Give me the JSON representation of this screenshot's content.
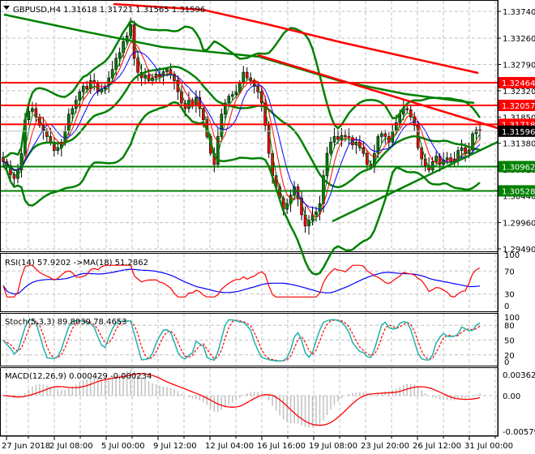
{
  "chart_data": [
    {
      "type": "candlestick",
      "title": "GBPUSD,H4",
      "ohlc_header": {
        "open": "1.31618",
        "high": "1.31721",
        "low": "1.31565",
        "close": "1.31596"
      },
      "ylim": [
        1.2925,
        1.3395
      ],
      "y_ticks": [
        "1.33740",
        "1.33260",
        "1.32790",
        "1.32320",
        "1.31850",
        "1.31380",
        "1.30910",
        "1.30440",
        "1.29960",
        "1.29490"
      ],
      "horizontal_levels": [
        {
          "value": "1.32464",
          "color": "#ff0000"
        },
        {
          "value": "1.32057",
          "color": "#ff0000"
        },
        {
          "value": "1.31718",
          "color": "#ff0000"
        },
        {
          "value": "1.30962",
          "color": "#008000"
        },
        {
          "value": "1.30528",
          "color": "#008000"
        }
      ],
      "current_price": {
        "value": "1.31596",
        "color": "#000000"
      },
      "trendlines": [
        {
          "name": "resistance",
          "color": "#ff0000",
          "from": [
            "16 Jul 08:00",
            1.3298
          ],
          "to": [
            "31 Jul 04:00",
            1.3172
          ]
        },
        {
          "name": "support",
          "color": "#008000",
          "from": [
            "19 Jul 12:00",
            1.2998
          ],
          "to": [
            "31 Jul 04:00",
            1.3138
          ]
        }
      ],
      "overlays": [
        "Bollinger Bands (green)",
        "Moving average (red, long)",
        "Moving average (green, long)",
        "Fast MAs (red, blue, green)"
      ]
    },
    {
      "type": "line",
      "title": "RSI(14) 57.9202 ->MA(18) 51.2862",
      "ylim": [
        0,
        100
      ],
      "y_ticks": [
        "100",
        "70",
        "30",
        "0"
      ],
      "series": [
        {
          "name": "RSI(14)",
          "color": "#ff0000",
          "last": 57.9202
        },
        {
          "name": "MA(18)",
          "color": "#0000ff",
          "last": 51.2862
        }
      ]
    },
    {
      "type": "line",
      "title": "Stoch(5,3,3) 89.8039 78.4653",
      "ylim": [
        0,
        100
      ],
      "y_ticks": [
        "100",
        "80",
        "50",
        "20",
        "0"
      ],
      "series": [
        {
          "name": "%K",
          "color": "#20b2aa",
          "last": 89.8039
        },
        {
          "name": "%D",
          "color": "#ff0000",
          "style": "dashed",
          "last": 78.4653
        }
      ]
    },
    {
      "type": "bar+line",
      "title": "MACD(12,26,9) 0.000429 -0.000234",
      "y_ticks": [
        "0.003626",
        "0.00",
        "-0.005797"
      ],
      "series": [
        {
          "name": "MACD histogram",
          "color": "#c0c0c0",
          "last": 0.000429
        },
        {
          "name": "Signal",
          "color": "#ff0000",
          "last": -0.000234
        }
      ]
    }
  ],
  "x_axis": {
    "labels": [
      "27 Jun 2018",
      "2 Jul 08:00",
      "5 Jul 00:00",
      "9 Jul 12:00",
      "12 Jul 04:00",
      "16 Jul 16:00",
      "19 Jul 08:00",
      "23 Jul 20:00",
      "26 Jul 12:00",
      "31 Jul 00:00"
    ]
  },
  "panes": {
    "main": {
      "title": "GBPUSD,H4 1.31618 1.31721 1.31565 1.31596"
    },
    "rsi": {
      "title": "RSI(14) 57.9202 ->MA(18) 51.2862"
    },
    "stoch": {
      "title": "Stoch(5,3,3) 89.8039 78.4653"
    },
    "macd": {
      "title": "MACD(12,26,9) 0.000429 -0.000234"
    }
  },
  "colors": {
    "bull": "#008000",
    "bear": "#ff0000",
    "grid": "#c0c0c0",
    "bb": "#008000",
    "ma_slow": "#ff0000",
    "rsi": "#ff0000",
    "rsi_ma": "#0000ff",
    "stoch_k": "#20b2aa",
    "stoch_d": "#ff0000",
    "macd_hist": "#c0c0c0",
    "macd_signal": "#ff0000"
  }
}
